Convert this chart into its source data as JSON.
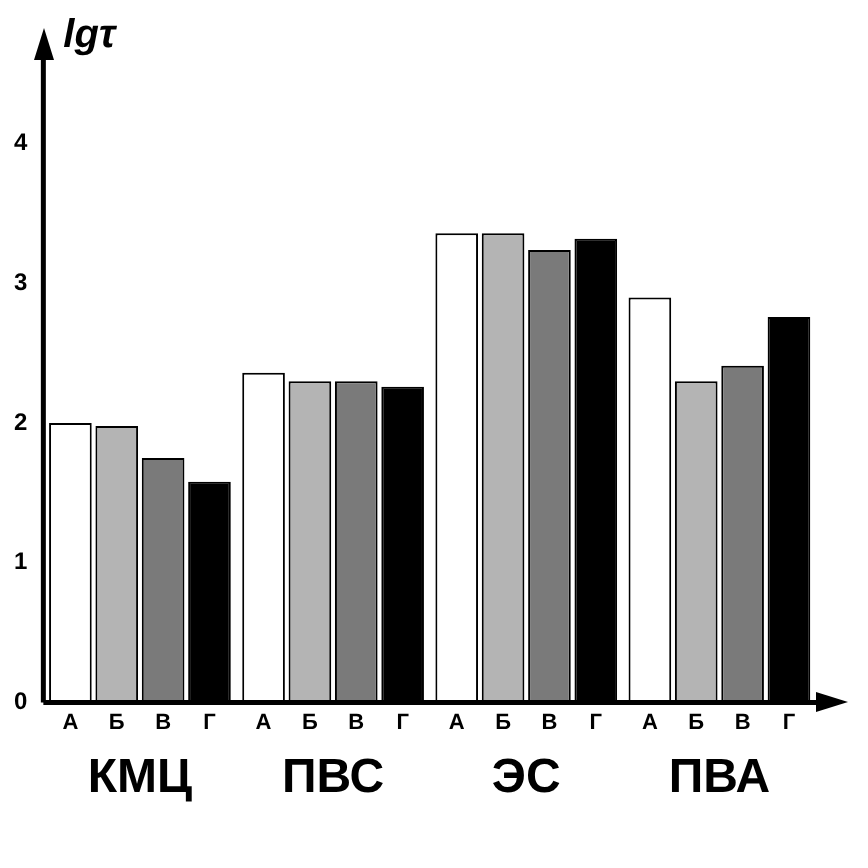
{
  "chart_data": {
    "type": "bar",
    "ylabel": "lgτ",
    "categories": [
      "КМЦ",
      "ПВС",
      "ЭС",
      "ПВА"
    ],
    "series": [
      {
        "name": "А",
        "color": "#ffffff",
        "values": [
          2.0,
          2.36,
          3.36,
          2.9
        ]
      },
      {
        "name": "Б",
        "color": "#b4b4b4",
        "values": [
          1.98,
          2.3,
          3.36,
          2.3
        ]
      },
      {
        "name": "В",
        "color": "#7a7a7a",
        "values": [
          1.75,
          2.3,
          3.24,
          2.41
        ]
      },
      {
        "name": "Г",
        "color": "#000000",
        "values": [
          1.58,
          2.26,
          3.32,
          2.76
        ]
      }
    ],
    "ylim": [
      0,
      4.6
    ],
    "yticks": [
      0,
      1,
      2,
      3,
      4
    ],
    "grid": false,
    "legend": false
  }
}
